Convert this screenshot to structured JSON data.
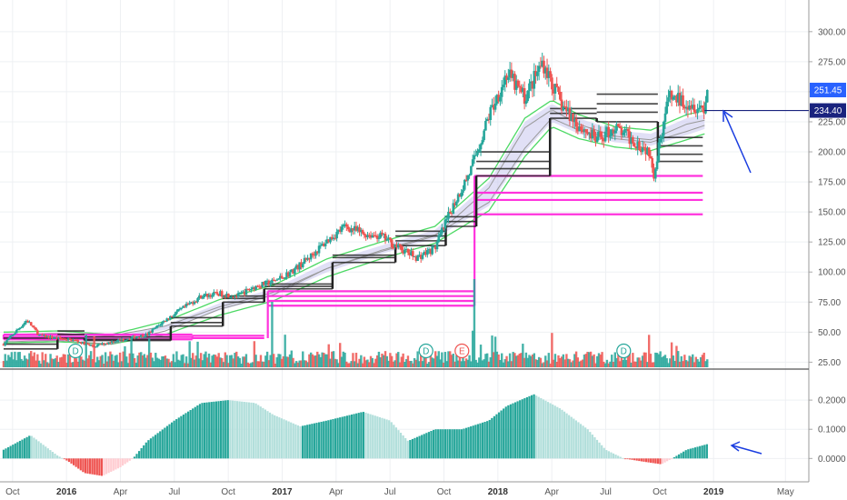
{
  "chart_data": [
    {
      "type": "candlestick",
      "title": "",
      "ylim": [
        20,
        315
      ],
      "y_ticks": [
        "25.00",
        "50.00",
        "75.00",
        "100.00",
        "125.00",
        "150.00",
        "175.00",
        "200.00",
        "225.00",
        "250.00",
        "275.00",
        "300.00"
      ],
      "y_tick_values": [
        25,
        50,
        75,
        100,
        125,
        150,
        175,
        200,
        225,
        250,
        275,
        300
      ],
      "x_labels": [
        {
          "label": "Oct",
          "t": 0.5,
          "bold": false
        },
        {
          "label": "2016",
          "t": 3.5,
          "bold": true
        },
        {
          "label": "Apr",
          "t": 6.5,
          "bold": false
        },
        {
          "label": "Jul",
          "t": 9.5,
          "bold": false
        },
        {
          "label": "Oct",
          "t": 12.5,
          "bold": false
        },
        {
          "label": "2017",
          "t": 15.5,
          "bold": true
        },
        {
          "label": "Apr",
          "t": 18.5,
          "bold": false
        },
        {
          "label": "Jul",
          "t": 21.5,
          "bold": false
        },
        {
          "label": "Oct",
          "t": 24.5,
          "bold": false
        },
        {
          "label": "2018",
          "t": 27.5,
          "bold": true
        },
        {
          "label": "Apr",
          "t": 30.5,
          "bold": false
        },
        {
          "label": "Jul",
          "t": 33.5,
          "bold": false
        },
        {
          "label": "Oct",
          "t": 36.5,
          "bold": false
        },
        {
          "label": "2019",
          "t": 39.5,
          "bold": true
        },
        {
          "label": "May",
          "t": 43.5,
          "bold": false
        }
      ],
      "price_anchors": [
        [
          0,
          40
        ],
        [
          1.3,
          60
        ],
        [
          2,
          47
        ],
        [
          3,
          45
        ],
        [
          4,
          43
        ],
        [
          5,
          38
        ],
        [
          6,
          42
        ],
        [
          7,
          45
        ],
        [
          8,
          48
        ],
        [
          9,
          60
        ],
        [
          10,
          70
        ],
        [
          11,
          80
        ],
        [
          12,
          82
        ],
        [
          13,
          80
        ],
        [
          14,
          88
        ],
        [
          15,
          92
        ],
        [
          16,
          100
        ],
        [
          17,
          112
        ],
        [
          18,
          126
        ],
        [
          19,
          138
        ],
        [
          20,
          132
        ],
        [
          21,
          130
        ],
        [
          22,
          120
        ],
        [
          23,
          112
        ],
        [
          24,
          120
        ],
        [
          25,
          155
        ],
        [
          26,
          185
        ],
        [
          27,
          230
        ],
        [
          28,
          265
        ],
        [
          29,
          245
        ],
        [
          30,
          275
        ],
        [
          31,
          240
        ],
        [
          32,
          222
        ],
        [
          33,
          210
        ],
        [
          34,
          220
        ],
        [
          35,
          210
        ],
        [
          36,
          200
        ],
        [
          36.2,
          180
        ],
        [
          36.5,
          210
        ],
        [
          37,
          245
        ],
        [
          38,
          242
        ],
        [
          39,
          236
        ],
        [
          39.2,
          251.45
        ]
      ],
      "last_close": 251.45,
      "tags": [
        {
          "value": 251.45,
          "label": "251.45",
          "color": "#2962ff"
        },
        {
          "value": 234.4,
          "label": "234.40",
          "color": "#1a237e"
        }
      ],
      "horizontal_line": 234.4,
      "support_bands_pink": [
        {
          "t0": 0.0,
          "t1": 10.5,
          "values": [
            44,
            46,
            48
          ]
        },
        {
          "t0": 10.5,
          "t1": 14.5,
          "values": [
            45,
            47
          ]
        },
        {
          "t0": 14.7,
          "t1": 26.2,
          "values": [
            72,
            76,
            80,
            84
          ]
        },
        {
          "t0": 26.2,
          "t1": 38.9,
          "values": [
            148,
            160,
            166,
            180
          ]
        }
      ],
      "steps_dark": [
        {
          "t0": 0.0,
          "t1": 3.0,
          "values": [
            36,
            40,
            45
          ]
        },
        {
          "t0": 3.0,
          "t1": 4.5,
          "values": [
            45,
            48,
            51
          ]
        },
        {
          "t0": 4.5,
          "t1": 9.3,
          "values": [
            43,
            44,
            46
          ]
        },
        {
          "t0": 9.3,
          "t1": 12.2,
          "values": [
            55,
            58,
            62
          ]
        },
        {
          "t0": 12.2,
          "t1": 14.5,
          "values": [
            75,
            78,
            80
          ]
        },
        {
          "t0": 14.5,
          "t1": 18.3,
          "values": [
            86,
            88,
            90
          ]
        },
        {
          "t0": 18.3,
          "t1": 21.8,
          "values": [
            108,
            112,
            114
          ]
        },
        {
          "t0": 21.8,
          "t1": 24.6,
          "values": [
            122,
            126,
            130,
            134
          ]
        },
        {
          "t0": 24.6,
          "t1": 26.3,
          "values": [
            138,
            142,
            146
          ]
        },
        {
          "t0": 26.3,
          "t1": 30.4,
          "values": [
            180,
            186,
            192,
            200
          ]
        },
        {
          "t0": 30.4,
          "t1": 33.0,
          "values": [
            228,
            232,
            236
          ]
        },
        {
          "t0": 33.0,
          "t1": 36.4,
          "values": [
            225,
            233,
            240,
            248
          ]
        },
        {
          "t0": 36.4,
          "t1": 38.9,
          "values": [
            192,
            198,
            205,
            212
          ]
        }
      ],
      "bands": {
        "slow": [
          [
            0,
            45
          ],
          [
            3,
            46
          ],
          [
            6,
            44
          ],
          [
            9,
            52
          ],
          [
            12,
            68
          ],
          [
            15,
            80
          ],
          [
            18,
            100
          ],
          [
            21,
            115
          ],
          [
            24,
            128
          ],
          [
            27,
            155
          ],
          [
            29,
            200
          ],
          [
            30.5,
            225
          ],
          [
            32,
            215
          ],
          [
            34,
            208
          ],
          [
            36,
            205
          ],
          [
            38,
            214
          ],
          [
            39.2,
            220
          ]
        ],
        "fast": [
          [
            0,
            47
          ],
          [
            3,
            48
          ],
          [
            6,
            45
          ],
          [
            9,
            56
          ],
          [
            12,
            74
          ],
          [
            15,
            86
          ],
          [
            18,
            108
          ],
          [
            21,
            122
          ],
          [
            24,
            135
          ],
          [
            27,
            175
          ],
          [
            29,
            225
          ],
          [
            30.5,
            240
          ],
          [
            32,
            228
          ],
          [
            34,
            218
          ],
          [
            36,
            215
          ],
          [
            38,
            228
          ],
          [
            39.2,
            232
          ]
        ]
      },
      "volume_events": [
        {
          "t": 4.0,
          "label": "D",
          "color": "#26a69a"
        },
        {
          "t": 23.5,
          "label": "D",
          "color": "#26a69a"
        },
        {
          "t": 25.5,
          "label": "E",
          "color": "#ef5350"
        },
        {
          "t": 34.5,
          "label": "D",
          "color": "#26a69a"
        }
      ]
    },
    {
      "type": "histogram",
      "title": "",
      "ylim": [
        -0.08,
        0.3
      ],
      "y_ticks": [
        "0.2000",
        "0.1000",
        "0.0000"
      ],
      "y_tick_values": [
        0.2,
        0.1,
        0.0
      ],
      "anchors": [
        [
          0,
          0.03
        ],
        [
          1.5,
          0.08
        ],
        [
          3,
          0.01
        ],
        [
          3.6,
          -0.01
        ],
        [
          4.5,
          -0.05
        ],
        [
          5.5,
          -0.06
        ],
        [
          6.5,
          -0.03
        ],
        [
          7.2,
          0.0
        ],
        [
          8,
          0.06
        ],
        [
          9.5,
          0.13
        ],
        [
          11,
          0.19
        ],
        [
          12.5,
          0.2
        ],
        [
          14,
          0.19
        ],
        [
          15,
          0.15
        ],
        [
          16.5,
          0.11
        ],
        [
          18,
          0.13
        ],
        [
          20,
          0.16
        ],
        [
          21.5,
          0.13
        ],
        [
          22.5,
          0.06
        ],
        [
          24,
          0.1
        ],
        [
          25.5,
          0.1
        ],
        [
          27,
          0.13
        ],
        [
          28,
          0.18
        ],
        [
          29.5,
          0.22
        ],
        [
          31,
          0.17
        ],
        [
          32.5,
          0.1
        ],
        [
          33.5,
          0.03
        ],
        [
          34.5,
          0.0
        ],
        [
          35.5,
          -0.01
        ],
        [
          36.6,
          -0.02
        ],
        [
          37.2,
          0.0
        ],
        [
          38,
          0.03
        ],
        [
          39.2,
          0.05
        ]
      ]
    }
  ]
}
